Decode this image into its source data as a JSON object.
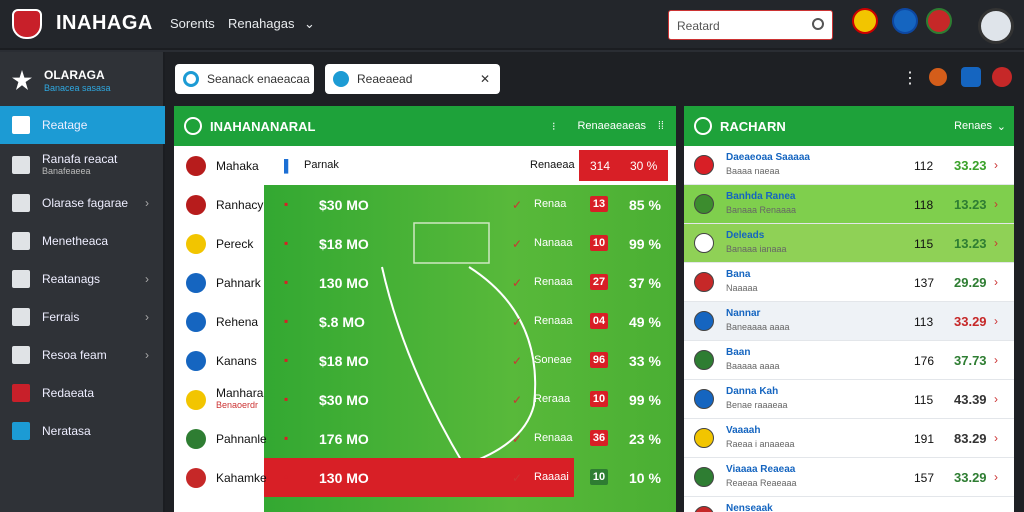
{
  "header": {
    "brand": "INAHAGA",
    "nav1": "Sorents",
    "nav2": "Renahagas",
    "search": "Reatard"
  },
  "sidebar": {
    "user_title": "OLARAGA",
    "user_sub": "Banacea sasasa",
    "items": [
      {
        "label": "Reatage"
      },
      {
        "label": "Ranafa reacat",
        "sub": "Banafeaeea"
      },
      {
        "label": "Olarase fagarae"
      },
      {
        "label": "Menetheaca"
      },
      {
        "label": "Reatanags"
      },
      {
        "label": "Ferrais"
      },
      {
        "label": "Resoa feam"
      },
      {
        "label": "Redaeata"
      },
      {
        "label": "Neratasa"
      }
    ]
  },
  "toolbar": {
    "pill1": "Seanack enaeacaa",
    "pill2": "Reaeaead"
  },
  "left_panel": {
    "title": "INAHANANARAL",
    "right": "Renaeaeaeas",
    "header_row": {
      "team": "Mahaka",
      "mid": "Parnak",
      "right1": "Renaeaa",
      "score": "314",
      "pct": "30 %"
    },
    "rows": [
      {
        "team": "Ranhacy",
        "odds": "$30 MO",
        "sub": "Renaa",
        "score": "13",
        "pct": "85 %"
      },
      {
        "team": "Pereck",
        "odds": "$18 MO",
        "sub": "Nanaaa",
        "score": "10",
        "pct": "99 %"
      },
      {
        "team": "Pahnark",
        "odds": "130 MO",
        "sub": "Renaaa",
        "score": "27",
        "pct": "37 %"
      },
      {
        "team": "Rehena",
        "odds": "$.8 MO",
        "sub": "Renaaa",
        "score": "04",
        "pct": "49 %"
      },
      {
        "team": "Kanans",
        "odds": "$18 MO",
        "sub": "Soneae",
        "score": "96",
        "pct": "33 %"
      },
      {
        "team": "Manhara",
        "sub2": "Benaoerdr",
        "odds": "$30 MO",
        "sub": "Reraaa",
        "score": "10",
        "pct": "99 %"
      },
      {
        "team": "Pahnanle",
        "odds": "176 MO",
        "sub": "Renaaa",
        "score": "36",
        "pct": "23 %"
      },
      {
        "team": "Kahamke",
        "odds": "130 MO",
        "sub": "Raaaai",
        "score": "10",
        "pct": "10 %"
      }
    ]
  },
  "right_panel": {
    "title": "RACHARN",
    "right": "Renaes",
    "rows": [
      {
        "team": "Daeaeoaa Saaaaa",
        "sub": "Baaaa naeaa",
        "a": "112",
        "b": "33.23"
      },
      {
        "team": "Banhda Ranea",
        "sub": "Banaaa Renaaaa",
        "a": "118",
        "b": "13.23"
      },
      {
        "team": "Deleads",
        "sub": "Banaaa ianaaa",
        "a": "115",
        "b": "13.23"
      },
      {
        "team": "Bana",
        "sub": "Naaaaa",
        "a": "137",
        "b": "29.29"
      },
      {
        "team": "Nannar",
        "sub": "Baneaaaa aaaa",
        "a": "113",
        "b": "33.29"
      },
      {
        "team": "Baan",
        "sub": "Baaaaa aaaa",
        "a": "176",
        "b": "37.73"
      },
      {
        "team": "Danna Kah",
        "sub": "Benae raaaeaa",
        "a": "115",
        "b": "43.39"
      },
      {
        "team": "Vaaaah",
        "sub": "Raeaa i anaaeaa",
        "a": "191",
        "b": "83.29"
      },
      {
        "team": "Viaaaa Reaeaa",
        "sub": "Reaeaa Reaeaaa",
        "a": "157",
        "b": "33.29"
      },
      {
        "team": "Nenseaak",
        "sub": "",
        "a": "",
        "b": ""
      }
    ]
  },
  "colors": {
    "accent": "#1c9bd4",
    "green": "#1ea23a",
    "red": "#d81f26"
  }
}
